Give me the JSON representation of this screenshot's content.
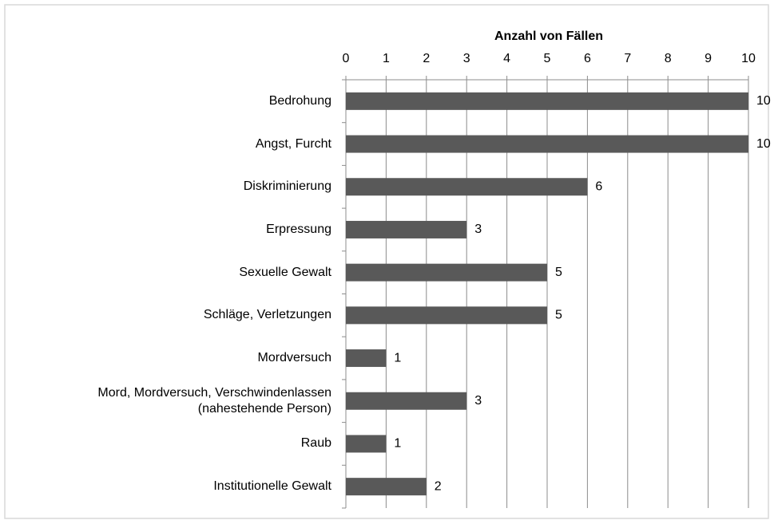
{
  "chart_data": {
    "type": "barh",
    "x_label": "Anzahl von Fällen",
    "categories": [
      "Bedrohung",
      "Angst, Furcht",
      "Diskriminierung",
      "Erpressung",
      "Sexuelle Gewalt",
      "Schläge, Verletzungen",
      "Mordversuch",
      "Mord, Mordversuch, Verschwindenlassen\n(nahestehende Person)",
      "Raub",
      "Institutionelle Gewalt"
    ],
    "values": [
      10,
      10,
      6,
      3,
      5,
      5,
      1,
      3,
      1,
      2
    ],
    "color": "#595959",
    "xlim": [
      0,
      10
    ],
    "xticks": [
      0,
      1,
      2,
      3,
      4,
      5,
      6,
      7,
      8,
      9,
      10
    ],
    "grid": true,
    "axis_position": "top"
  }
}
